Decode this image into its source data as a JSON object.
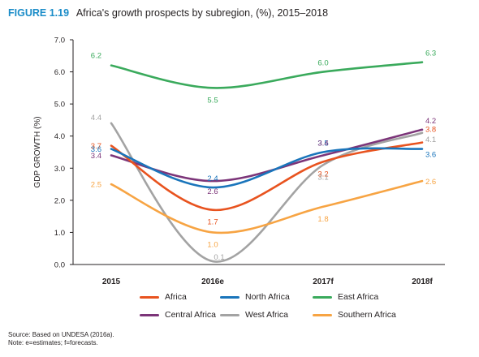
{
  "figure": {
    "label": "FIGURE 1.19",
    "title": "Africa's growth prospects by subregion, (%), 2015–2018"
  },
  "notes": {
    "source": "Source: Based on UNDESA (2016a).",
    "note": "Note: e=estimates; f=forecasts."
  },
  "chart_data": {
    "type": "line",
    "x": [
      "2015",
      "2016e",
      "2017f",
      "2018f"
    ],
    "ylabel": "GDP GROWTH (%)",
    "ylim": [
      0,
      7
    ],
    "yticks": [
      "0.0",
      "1.0",
      "2.0",
      "3.0",
      "4.0",
      "5.0",
      "6.0",
      "7.0"
    ],
    "grid": false,
    "smooth": true,
    "legend_position": "bottom",
    "series": [
      {
        "name": "Africa",
        "color": "#e8531f",
        "values": [
          3.7,
          1.7,
          3.2,
          3.8
        ],
        "labels": [
          "3.7",
          "1.7",
          "3.2",
          "3.8"
        ]
      },
      {
        "name": "North Africa",
        "color": "#1a75bb",
        "values": [
          3.6,
          2.4,
          3.5,
          3.6
        ],
        "labels": [
          "3.6",
          "2.4",
          "3.5",
          "3.6"
        ]
      },
      {
        "name": "East Africa",
        "color": "#3aaa5c",
        "values": [
          6.2,
          5.5,
          6.0,
          6.3
        ],
        "labels": [
          "6.2",
          "5.5",
          "6.0",
          "6.3"
        ]
      },
      {
        "name": "Central Africa",
        "color": "#7c3579",
        "values": [
          3.4,
          2.6,
          3.4,
          4.2
        ],
        "labels": [
          "3.4",
          "2.6",
          "3.4",
          "4.2"
        ]
      },
      {
        "name": "West Africa",
        "color": "#a3a3a3",
        "values": [
          4.4,
          0.1,
          3.1,
          4.1
        ],
        "labels": [
          "4.4",
          "0.1",
          "3.1",
          "4.1"
        ]
      },
      {
        "name": "Southern Africa",
        "color": "#f7a443",
        "values": [
          2.5,
          1.0,
          1.8,
          2.6
        ],
        "labels": [
          "2.5",
          "1.0",
          "1.8",
          "2.6"
        ]
      }
    ]
  }
}
